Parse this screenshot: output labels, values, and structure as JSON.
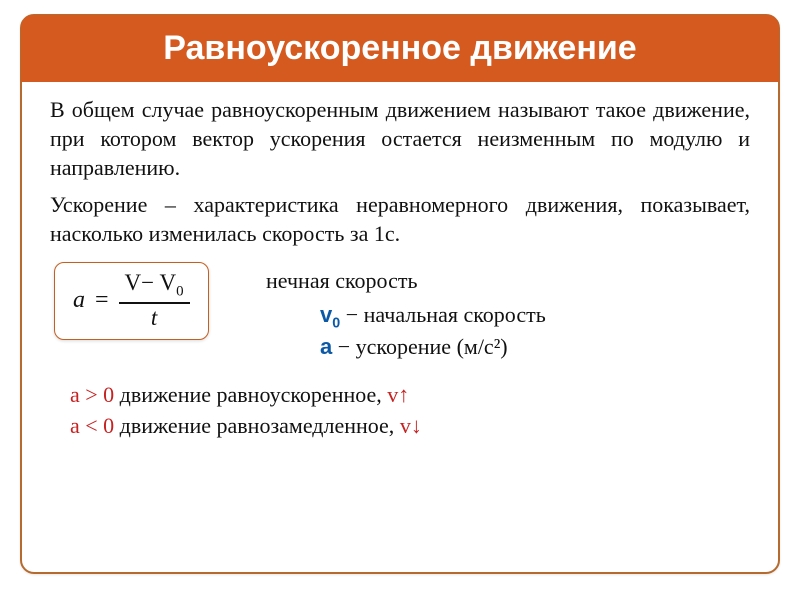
{
  "colors": {
    "banner_bg": "#d45a1f",
    "banner_text": "#ffffff",
    "border": "#b56a2e",
    "text": "#111111",
    "red": "#c62222",
    "blue": "#0b59a6",
    "background": "#ffffff"
  },
  "typography": {
    "title_fontsize": 34,
    "title_family": "Arial",
    "title_weight": "bold",
    "body_fontsize": 22,
    "body_family": "Georgia / Times",
    "formula_fontsize": 24
  },
  "title": "Равноускоренное движение",
  "paragraphs": {
    "definition": "В общем случае равноускоренным движением называют такое движение, при котором вектор ускорения остается неизменным по модулю и направлению.",
    "acceleration": "Ускорение – характеристика неравномерного движения, показывает, насколько изменилась скорость за 1с."
  },
  "formula": {
    "lhs": "a",
    "eq": "=",
    "num": "V− V",
    "num_sub": "0",
    "den": "t"
  },
  "labels": {
    "v_final_partial": "нечная скорость",
    "v0_sym": "v",
    "v0_sub": "0",
    "v0_text": " − начальная скорость",
    "a_sym": "a",
    "a_text": " − ускорение (м/с²)"
  },
  "conditions": {
    "line1_red": "a > 0",
    "line1_black": " движение равноускоренное,  ",
    "line1_red2": "v↑",
    "line2_red": "a < 0",
    "line2_black": " движение равнозамедленное, ",
    "line2_red2": "v↓"
  }
}
